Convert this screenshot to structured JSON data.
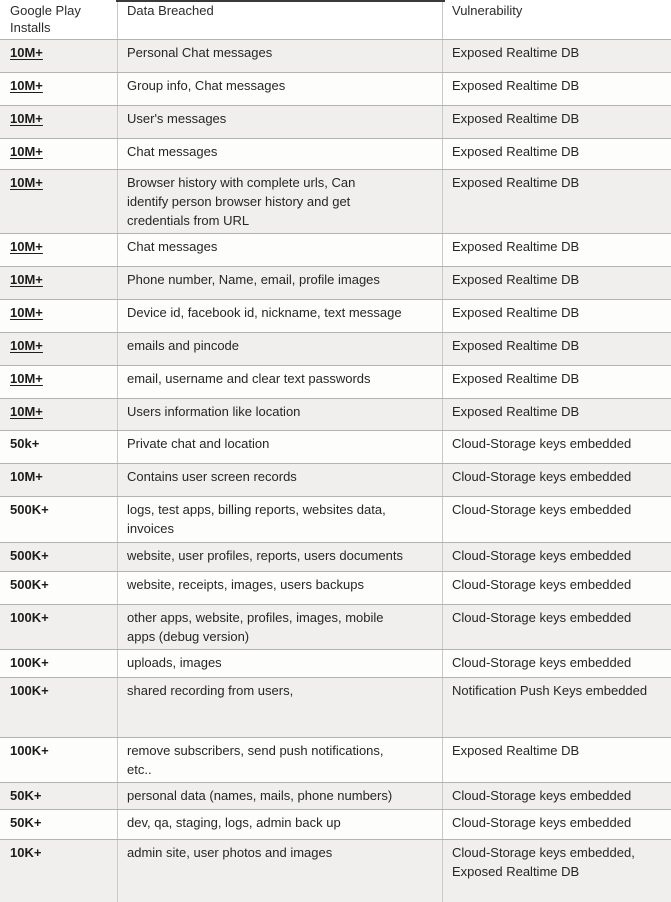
{
  "table": {
    "headers": [
      "Google Play\nInstalls",
      "Data Breached",
      "Vulnerability"
    ],
    "accent_colors": {
      "row_shade": "#f0efee",
      "row_white": "#fdfdfc",
      "horizontal_border": "#b3b3b3",
      "vertical_border": "#c9c9c9",
      "top_fragment": "#3a3a3c",
      "text": "#262626"
    },
    "rows": [
      {
        "installs": "10M+",
        "underlined": true,
        "data_breached": "Personal Chat messages",
        "vulnerability": "Exposed Realtime DB"
      },
      {
        "installs": "10M+",
        "underlined": true,
        "data_breached": "Group info, Chat messages",
        "vulnerability": "Exposed Realtime DB"
      },
      {
        "installs": "10M+",
        "underlined": true,
        "data_breached": "User's messages",
        "vulnerability": "Exposed Realtime DB"
      },
      {
        "installs": "10M+",
        "underlined": true,
        "data_breached": "Chat messages",
        "vulnerability": "Exposed Realtime DB"
      },
      {
        "installs": "10M+",
        "underlined": true,
        "data_breached": "Browser history with complete urls, Can\nidentify person browser history and get\ncredentials from URL",
        "vulnerability": "Exposed Realtime DB"
      },
      {
        "installs": "10M+",
        "underlined": true,
        "data_breached": "Chat messages",
        "vulnerability": "Exposed Realtime DB"
      },
      {
        "installs": "10M+",
        "underlined": true,
        "data_breached": "Phone number, Name, email, profile images",
        "vulnerability": "Exposed Realtime DB"
      },
      {
        "installs": "10M+",
        "underlined": true,
        "data_breached": "Device id, facebook id, nickname, text message",
        "vulnerability": "Exposed Realtime DB"
      },
      {
        "installs": "10M+",
        "underlined": true,
        "data_breached": "emails and pincode",
        "vulnerability": "Exposed Realtime DB"
      },
      {
        "installs": "10M+",
        "underlined": true,
        "data_breached": "email, username and clear text passwords",
        "vulnerability": "Exposed Realtime DB"
      },
      {
        "installs": "10M+",
        "underlined": true,
        "data_breached": "Users information like location",
        "vulnerability": "Exposed Realtime DB"
      },
      {
        "installs": "50k+",
        "underlined": false,
        "data_breached": "Private chat and location",
        "vulnerability": "Cloud-Storage keys embedded"
      },
      {
        "installs": "10M+",
        "underlined": false,
        "data_breached": "Contains user screen records",
        "vulnerability": "Cloud-Storage keys embedded"
      },
      {
        "installs": "500K+",
        "underlined": false,
        "data_breached": "logs, test apps, billing reports, websites data,\ninvoices",
        "vulnerability": "Cloud-Storage keys embedded"
      },
      {
        "installs": "500K+",
        "underlined": false,
        "data_breached": "website, user profiles, reports, users documents",
        "vulnerability": "Cloud-Storage keys embedded"
      },
      {
        "installs": "500K+",
        "underlined": false,
        "data_breached": "website, receipts, images, users backups",
        "vulnerability": "Cloud-Storage keys embedded"
      },
      {
        "installs": "100K+",
        "underlined": false,
        "data_breached": "other apps, website, profiles, images, mobile\napps (debug version)",
        "vulnerability": "Cloud-Storage keys embedded"
      },
      {
        "installs": "100K+",
        "underlined": false,
        "data_breached": "uploads, images",
        "vulnerability": "Cloud-Storage keys embedded"
      },
      {
        "installs": "100K+",
        "underlined": false,
        "data_breached": "shared recording from users,",
        "vulnerability": "Notification Push Keys embedded"
      },
      {
        "installs": "100K+",
        "underlined": false,
        "data_breached": "remove subscribers, send push notifications,\netc..",
        "vulnerability": "Exposed Realtime DB"
      },
      {
        "installs": "50K+",
        "underlined": false,
        "data_breached": "personal data (names, mails, phone numbers)",
        "vulnerability": "Cloud-Storage keys embedded"
      },
      {
        "installs": "50K+",
        "underlined": false,
        "data_breached": "dev, qa, staging, logs, admin back up",
        "vulnerability": "Cloud-Storage keys embedded"
      },
      {
        "installs": "10K+",
        "underlined": false,
        "data_breached": "admin site, user photos and images",
        "vulnerability": "Cloud-Storage keys embedded,\nExposed Realtime DB"
      }
    ]
  }
}
